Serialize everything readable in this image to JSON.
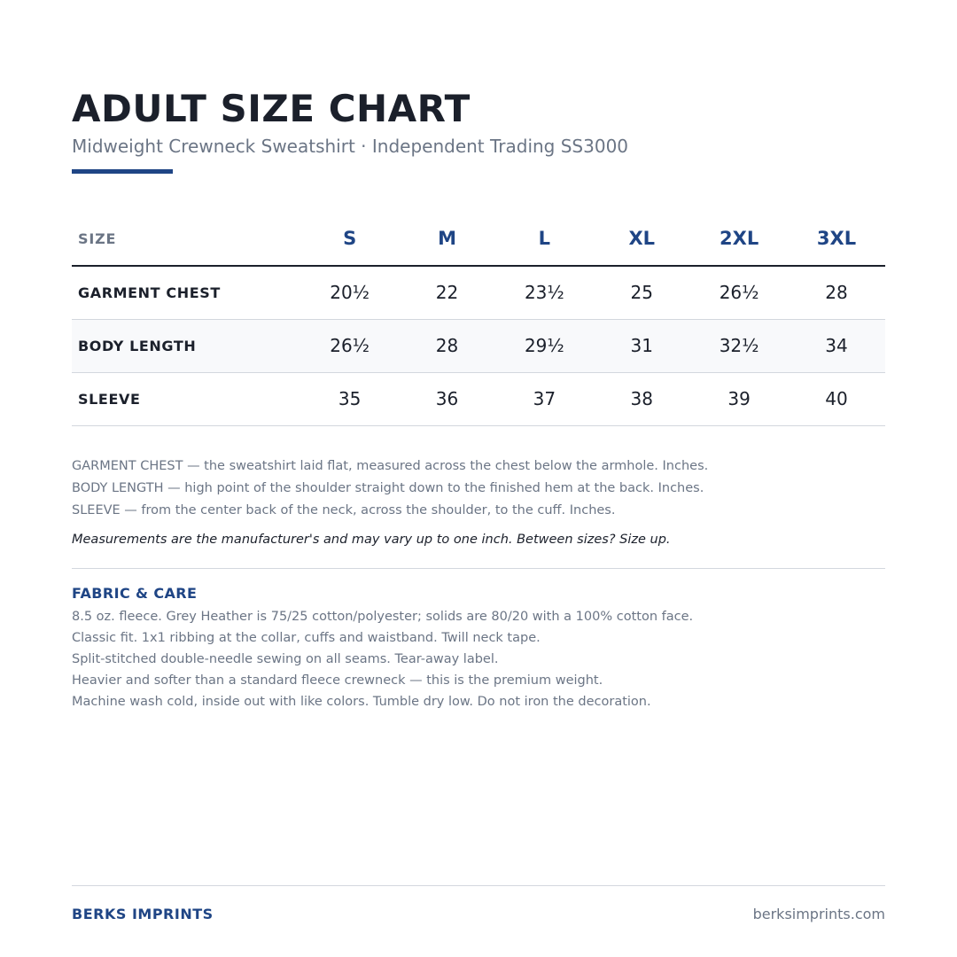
{
  "header": {
    "title": "ADULT SIZE CHART",
    "subtitle": "Midweight Crewneck Sweatshirt  ·  Independent Trading SS3000"
  },
  "table": {
    "corner_label": "SIZE",
    "sizes": [
      "S",
      "M",
      "L",
      "XL",
      "2XL",
      "3XL"
    ],
    "rows": [
      {
        "label": "GARMENT CHEST",
        "values": [
          "20½",
          "22",
          "23½",
          "25",
          "26½",
          "28"
        ]
      },
      {
        "label": "BODY LENGTH",
        "values": [
          "26½",
          "28",
          "29½",
          "31",
          "32½",
          "34"
        ]
      },
      {
        "label": "SLEEVE",
        "values": [
          "35",
          "36",
          "37",
          "38",
          "39",
          "40"
        ]
      }
    ]
  },
  "notes": {
    "lines": [
      "GARMENT CHEST — the sweatshirt laid flat, measured across the chest below the armhole. Inches.",
      "BODY LENGTH — high point of the shoulder straight down to the finished hem at the back. Inches.",
      "SLEEVE — from the center back of the neck, across the shoulder, to the cuff. Inches."
    ],
    "disclaimer": "Measurements are the manufacturer's and may vary up to one inch. Between sizes? Size up."
  },
  "care": {
    "title": "FABRIC & CARE",
    "lines": [
      "8.5 oz. fleece. Grey Heather is 75/25 cotton/polyester; solids are 80/20 with a 100% cotton face.",
      "Classic fit. 1x1 ribbing at the collar, cuffs and waistband. Twill neck tape.",
      "Split-stitched double-needle sewing on all seams. Tear-away label.",
      "Heavier and softer than a standard fleece crewneck — this is the premium weight.",
      "Machine wash cold, inside out with like colors. Tumble dry low. Do not iron the decoration."
    ]
  },
  "footer": {
    "brand": "BERKS IMPRINTS",
    "url": "berksimprints.com"
  },
  "colors": {
    "accent": "#1f4585",
    "text_dark": "#1b202b",
    "text_muted": "#6b7585",
    "rule": "#d3d7de"
  }
}
